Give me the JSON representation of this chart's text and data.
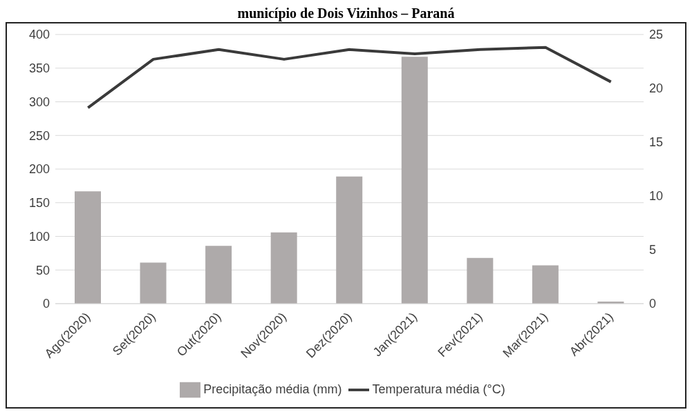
{
  "chart_data": {
    "type": "bar",
    "title": "município de Dois Vizinhos – Paraná",
    "categories": [
      "Ago(2020)",
      "Set(2020)",
      "Out(2020)",
      "Nov(2020)",
      "Dez(2020)",
      "Jan(2021)",
      "Fev(2021)",
      "Mar(2021)",
      "Abr(2021)"
    ],
    "series": [
      {
        "name": "Precipitação média (mm)",
        "color": "#aeaaaa",
        "values": [
          167,
          61,
          86,
          106,
          189,
          367,
          68,
          57,
          3
        ]
      },
      {
        "name": "Temperatura média (°C)",
        "type": "line",
        "axis": "y2",
        "color": "#3a3a3a",
        "values": [
          18.2,
          22.7,
          23.6,
          22.7,
          23.6,
          23.2,
          23.6,
          23.8,
          20.6
        ]
      }
    ],
    "ylim": [
      0,
      400
    ],
    "yticks": [
      0,
      50,
      100,
      150,
      200,
      250,
      300,
      350,
      400
    ],
    "y2lim": [
      0,
      25
    ],
    "y2ticks": [
      0,
      5,
      10,
      15,
      20,
      25
    ],
    "grid": "y",
    "legend": "bottom",
    "marker": "none"
  }
}
